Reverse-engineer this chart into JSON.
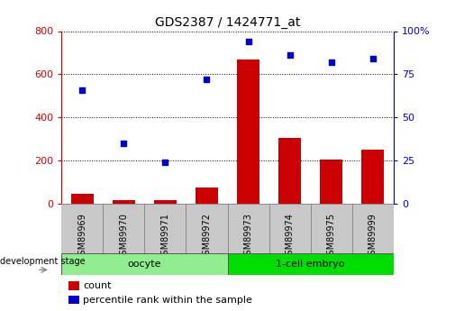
{
  "title": "GDS2387 / 1424771_at",
  "samples": [
    "GSM89969",
    "GSM89970",
    "GSM89971",
    "GSM89972",
    "GSM89973",
    "GSM89974",
    "GSM89975",
    "GSM89999"
  ],
  "counts": [
    45,
    15,
    15,
    75,
    670,
    305,
    205,
    250
  ],
  "percentile": [
    66,
    35,
    24,
    72,
    94,
    86,
    82,
    84
  ],
  "groups": [
    {
      "label": "oocyte",
      "start": 0,
      "end": 4,
      "color": "#90EE90"
    },
    {
      "label": "1-cell embryo",
      "start": 4,
      "end": 8,
      "color": "#00DD00"
    }
  ],
  "bar_color": "#CC0000",
  "dot_color": "#0000CC",
  "left_axis_color": "#CC0000",
  "right_axis_color": "#0000CC",
  "ylim_left": [
    0,
    800
  ],
  "ylim_right": [
    0,
    100
  ],
  "yticks_left": [
    0,
    200,
    400,
    600,
    800
  ],
  "yticks_right": [
    0,
    25,
    50,
    75,
    100
  ],
  "background_color": "#ffffff",
  "legend_count_label": "count",
  "legend_pct_label": "percentile rank within the sample",
  "dev_stage_label": "development stage"
}
